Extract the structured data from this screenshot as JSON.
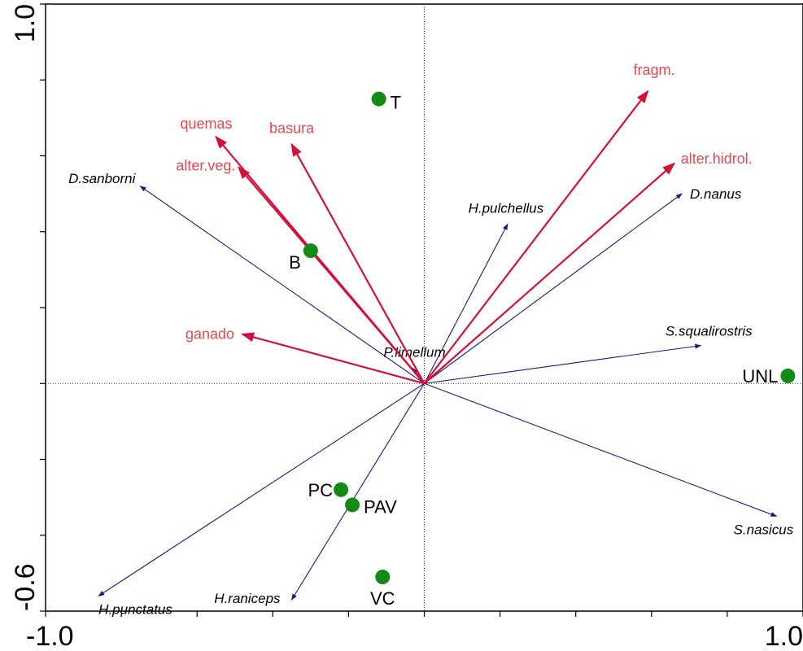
{
  "chart_data": {
    "type": "scatter",
    "title": "",
    "xlabel": "",
    "ylabel": "",
    "xlim": [
      -1.0,
      1.0
    ],
    "ylim": [
      -0.6,
      1.0
    ],
    "x_tick_labels": [
      {
        "value": -1.0,
        "label": "-1.0"
      },
      {
        "value": 1.0,
        "label": "1.0"
      }
    ],
    "y_tick_labels": [
      {
        "value": -0.6,
        "label": "-0.6"
      },
      {
        "value": 1.0,
        "label": "1.0"
      }
    ],
    "x_ticks": [
      -1.0,
      -0.8,
      -0.6,
      -0.4,
      -0.2,
      0.0,
      0.2,
      0.4,
      0.6,
      0.8,
      1.0
    ],
    "y_ticks": [
      -0.6,
      -0.4,
      -0.2,
      0.0,
      0.2,
      0.4,
      0.6,
      0.8,
      1.0
    ],
    "grid": false,
    "reference_lines": {
      "x": 0.0,
      "y": 0.0
    },
    "series": [
      {
        "kind": "species-vectors",
        "color": "#1a1a7a",
        "items": [
          {
            "name": "D.sanborni",
            "x": -0.75,
            "y": 0.52
          },
          {
            "name": "H.pulchellus",
            "x": 0.22,
            "y": 0.42
          },
          {
            "name": "D.nanus",
            "x": 0.68,
            "y": 0.5
          },
          {
            "name": "P.limellum",
            "x": -0.03,
            "y": 0.04
          },
          {
            "name": "S.squalirostris",
            "x": 0.73,
            "y": 0.1
          },
          {
            "name": "S.nasicus",
            "x": 0.93,
            "y": -0.35
          },
          {
            "name": "H.punctatus",
            "x": -0.86,
            "y": -0.56
          },
          {
            "name": "H.raniceps",
            "x": -0.35,
            "y": -0.57
          }
        ]
      },
      {
        "kind": "environmental-vectors",
        "color": "#d40f3a",
        "items": [
          {
            "name": "fragm.",
            "x": 0.59,
            "y": 0.77
          },
          {
            "name": "quemas",
            "x": -0.55,
            "y": 0.65
          },
          {
            "name": "basura",
            "x": -0.35,
            "y": 0.63
          },
          {
            "name": "alter.veg.",
            "x": -0.49,
            "y": 0.57
          },
          {
            "name": "alter.hidrol.",
            "x": 0.66,
            "y": 0.58
          },
          {
            "name": "ganado",
            "x": -0.48,
            "y": 0.13
          }
        ]
      },
      {
        "kind": "sites",
        "color": "#138a13",
        "items": [
          {
            "name": "T",
            "x": -0.12,
            "y": 0.75
          },
          {
            "name": "B",
            "x": -0.3,
            "y": 0.35
          },
          {
            "name": "UNL",
            "x": 0.96,
            "y": 0.02
          },
          {
            "name": "PC",
            "x": -0.22,
            "y": -0.28
          },
          {
            "name": "PAV",
            "x": -0.19,
            "y": -0.32
          },
          {
            "name": "VC",
            "x": -0.11,
            "y": -0.51
          }
        ]
      }
    ]
  }
}
